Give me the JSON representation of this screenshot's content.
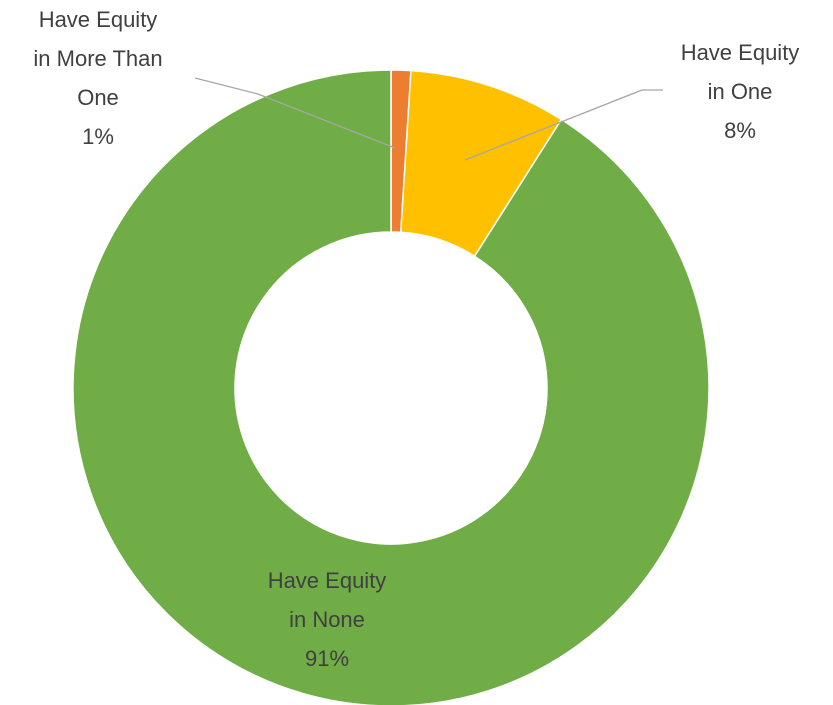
{
  "chart_data": {
    "type": "donut",
    "categories": [
      "Have Equity in More Than One",
      "Have Equity in One",
      "Have Equity in None"
    ],
    "values": [
      1,
      8,
      91
    ],
    "value_labels": [
      "1%",
      "8%",
      "91%"
    ],
    "colors": [
      "#ed7d31",
      "#ffc000",
      "#70ad47"
    ]
  }
}
